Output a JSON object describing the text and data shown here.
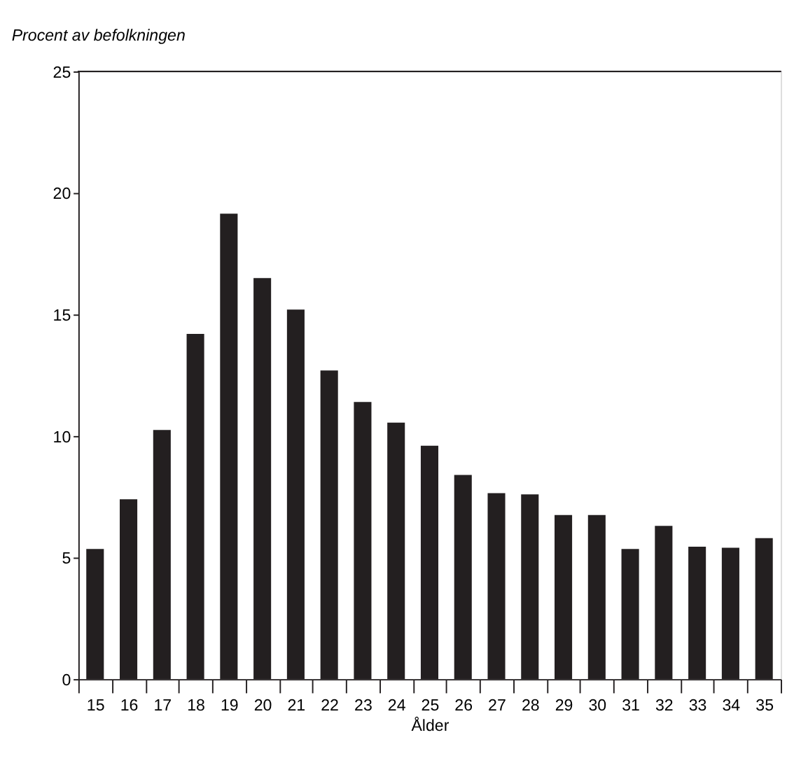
{
  "chart_data": {
    "type": "bar",
    "ylabel": "Procent av befolkningen",
    "xlabel": "Ålder",
    "categories": [
      "15",
      "16",
      "17",
      "18",
      "19",
      "20",
      "21",
      "22",
      "23",
      "24",
      "25",
      "26",
      "27",
      "28",
      "29",
      "30",
      "31",
      "32",
      "33",
      "34",
      "35"
    ],
    "values": [
      5.35,
      7.4,
      10.25,
      14.2,
      19.15,
      16.5,
      15.2,
      12.7,
      11.4,
      10.55,
      9.6,
      8.4,
      7.65,
      7.6,
      6.75,
      6.75,
      5.35,
      6.3,
      5.45,
      5.4,
      5.8
    ],
    "color": "#231f20",
    "ylim": [
      0,
      25
    ],
    "yticks": [
      0,
      5,
      10,
      15,
      20,
      25
    ],
    "grid": false
  }
}
